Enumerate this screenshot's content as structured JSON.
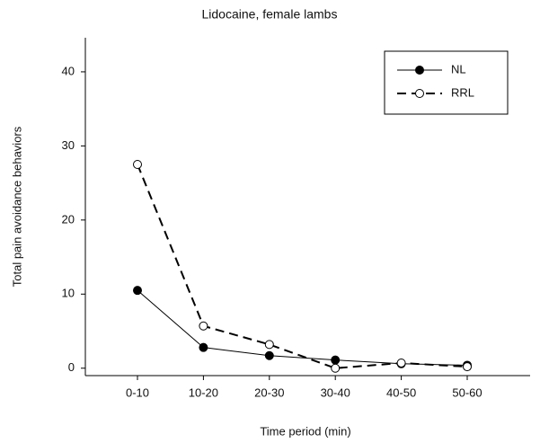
{
  "chart_data": {
    "type": "line",
    "title": "Lidocaine, female lambs",
    "xlabel": "Time period (min)",
    "ylabel": "Total pain avoidance behaviors",
    "categories": [
      "0-10",
      "10-20",
      "20-30",
      "30-40",
      "40-50",
      "50-60"
    ],
    "series": [
      {
        "name": "NL",
        "color": "#000000",
        "values": [
          10.5,
          2.8,
          1.7,
          1.1,
          0.6,
          0.4
        ]
      },
      {
        "name": "RRL",
        "color": "#000000",
        "values": [
          27.5,
          5.7,
          3.2,
          0.0,
          0.7,
          0.2
        ]
      }
    ],
    "ylim": [
      -1,
      44.6
    ],
    "yticks": [
      0,
      10,
      20,
      30,
      40
    ],
    "legend": "upper right"
  }
}
